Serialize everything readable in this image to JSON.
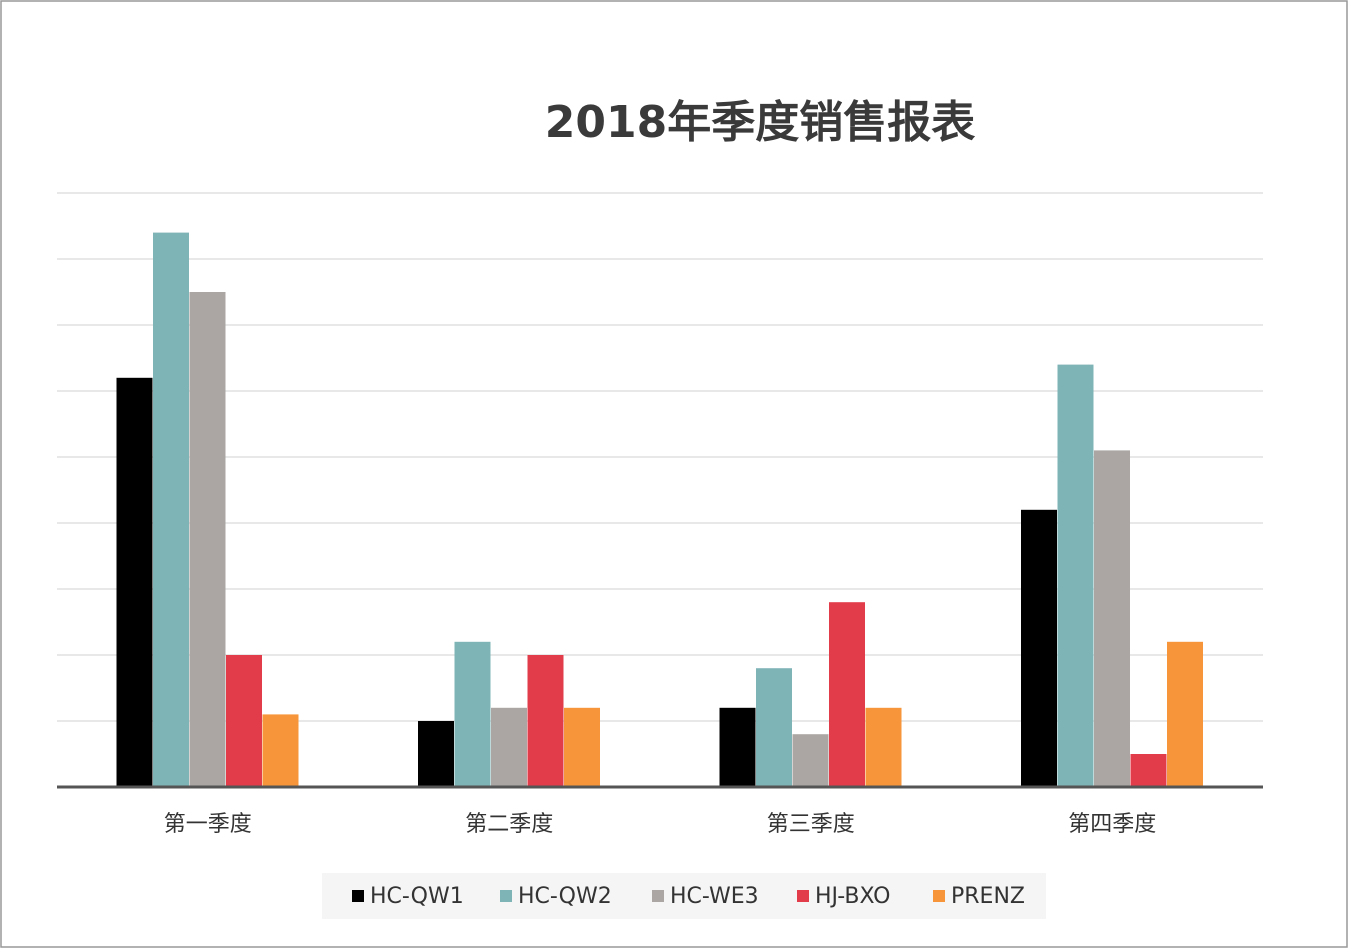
{
  "chart_data": {
    "type": "bar",
    "title": "2018年季度销售报表",
    "categories": [
      "第一季度",
      "第二季度",
      "第三季度",
      "第四季度"
    ],
    "series": [
      {
        "name": "HC-QW1",
        "color": "#000000",
        "values": [
          6.2,
          1.0,
          1.2,
          4.2
        ]
      },
      {
        "name": "HC-QW2",
        "color": "#7fb4b7",
        "values": [
          8.4,
          2.2,
          1.8,
          6.4
        ]
      },
      {
        "name": "HC-WE3",
        "color": "#aba6a3",
        "values": [
          7.5,
          1.2,
          0.8,
          5.1
        ]
      },
      {
        "name": "HJ-BXO",
        "color": "#e23c4b",
        "values": [
          2.0,
          2.0,
          2.8,
          0.5
        ]
      },
      {
        "name": "PRENZ",
        "color": "#f7953a",
        "values": [
          1.1,
          1.2,
          1.2,
          2.2
        ]
      }
    ],
    "ylim": [
      0,
      9
    ],
    "yticks": [
      0,
      1,
      2,
      3,
      4,
      5,
      6,
      7,
      8,
      9
    ],
    "grid": true,
    "legend": "bottom"
  }
}
